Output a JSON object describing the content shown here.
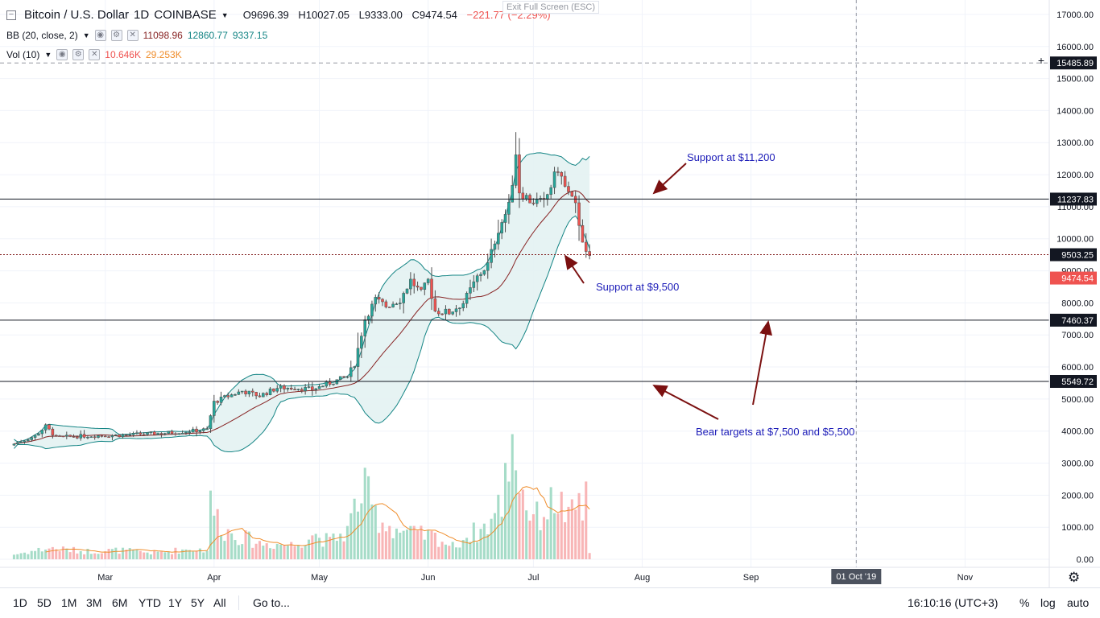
{
  "header": {
    "title": "Bitcoin / U.S. Dollar",
    "interval": "1D",
    "exchange": "COINBASE",
    "open": "O9696.39",
    "high": "H10027.05",
    "low": "L9333.00",
    "close": "C9474.54",
    "change": "−221.77 (−2.29%)"
  },
  "exit_fullscreen": "Exit Full Screen (ESC)",
  "indicators": {
    "bb": {
      "label": "BB (20, close, 2)",
      "basis": "11098.96",
      "upper": "12860.77",
      "lower": "9337.15"
    },
    "vol": {
      "label": "Vol (10)",
      "volume": "10.646K",
      "ma": "29.253K"
    }
  },
  "annotations": {
    "support_11200": "Support at $11,200",
    "support_9500": "Support at $9,500",
    "bear_targets": "Bear targets at $7,500 and $5,500"
  },
  "bottom_bar": {
    "ranges": [
      "1D",
      "5D",
      "1M",
      "3M",
      "6M",
      "YTD",
      "1Y",
      "5Y",
      "All"
    ],
    "goto": "Go to...",
    "time": "16:10:16 (UTC+3)",
    "percent": "%",
    "log": "log",
    "auto": "auto"
  },
  "colors": {
    "up": "#26a69a",
    "down": "#ef5350",
    "bb_band": "#138484",
    "bb_basis": "#872323",
    "bb_fill": "#e3f2f2",
    "vol_up": "#a6dcc8",
    "vol_down": "#f8b5b6",
    "vol_ma": "#ef8d2b",
    "annotation": "#1c1cb8",
    "arrow": "#7b1010"
  },
  "chart_data": {
    "type": "candlestick",
    "title": "Bitcoin / U.S. Dollar, 1D, COINBASE",
    "y_ticks": [
      0,
      1000,
      2000,
      3000,
      4000,
      5000,
      6000,
      7000,
      8000,
      9000,
      10000,
      11000,
      12000,
      13000,
      14000,
      15000,
      16000,
      17000
    ],
    "ylim": [
      -250,
      17450
    ],
    "x_labels": [
      {
        "day": 26,
        "label": "Mar"
      },
      {
        "day": 57,
        "label": "Apr"
      },
      {
        "day": 87,
        "label": "May"
      },
      {
        "day": 118,
        "label": "Jun"
      },
      {
        "day": 148,
        "label": "Jul"
      },
      {
        "day": 179,
        "label": "Aug"
      },
      {
        "day": 210,
        "label": "Sep"
      },
      {
        "day": 240,
        "label": "01 Oct '19"
      },
      {
        "day": 271,
        "label": "Nov"
      }
    ],
    "xlim": [
      -4,
      295
    ],
    "cursor_day": 240,
    "horizontal_lines": [
      {
        "value": 11237.83,
        "label": "11237.83",
        "style": "solid"
      },
      {
        "value": 7460.37,
        "label": "7460.37",
        "style": "solid"
      },
      {
        "value": 5549.72,
        "label": "5549.72",
        "style": "solid"
      },
      {
        "value": 15485.89,
        "label": "15485.89",
        "style": "dashed"
      },
      {
        "value": 9503.25,
        "label": "9503.25",
        "style": "dotted"
      }
    ],
    "last_price": {
      "value": 9474.54,
      "label": "9474.54"
    },
    "price_anchors": [
      [
        0,
        3600
      ],
      [
        6,
        3850
      ],
      [
        9,
        4150
      ],
      [
        12,
        3800
      ],
      [
        20,
        3850
      ],
      [
        30,
        3870
      ],
      [
        45,
        3950
      ],
      [
        55,
        4050
      ],
      [
        57,
        4900
      ],
      [
        60,
        5050
      ],
      [
        65,
        5250
      ],
      [
        70,
        5100
      ],
      [
        75,
        5350
      ],
      [
        80,
        5350
      ],
      [
        85,
        5300
      ],
      [
        90,
        5500
      ],
      [
        95,
        5700
      ],
      [
        97,
        6100
      ],
      [
        100,
        7500
      ],
      [
        103,
        8100
      ],
      [
        106,
        7900
      ],
      [
        110,
        8100
      ],
      [
        113,
        8700
      ],
      [
        116,
        8300
      ],
      [
        118,
        8700
      ],
      [
        120,
        7750
      ],
      [
        124,
        7700
      ],
      [
        128,
        8000
      ],
      [
        132,
        8800
      ],
      [
        135,
        9200
      ],
      [
        138,
        10300
      ],
      [
        141,
        11000
      ],
      [
        142,
        11800
      ],
      [
        143,
        12700
      ],
      [
        144,
        11500
      ],
      [
        147,
        11200
      ],
      [
        151,
        11100
      ],
      [
        155,
        12200
      ],
      [
        157,
        11600
      ],
      [
        159,
        11200
      ],
      [
        160,
        11000
      ],
      [
        162,
        10000
      ],
      [
        163,
        9500
      ],
      [
        164,
        9474
      ]
    ],
    "volume_anchors": [
      [
        0,
        150
      ],
      [
        10,
        350
      ],
      [
        20,
        250
      ],
      [
        30,
        280
      ],
      [
        40,
        200
      ],
      [
        50,
        320
      ],
      [
        55,
        300
      ],
      [
        56,
        1700
      ],
      [
        60,
        900
      ],
      [
        65,
        700
      ],
      [
        70,
        500
      ],
      [
        80,
        450
      ],
      [
        85,
        800
      ],
      [
        90,
        550
      ],
      [
        95,
        900
      ],
      [
        98,
        1900
      ],
      [
        100,
        2100
      ],
      [
        103,
        1400
      ],
      [
        106,
        1100
      ],
      [
        110,
        900
      ],
      [
        113,
        800
      ],
      [
        120,
        700
      ],
      [
        125,
        400
      ],
      [
        130,
        800
      ],
      [
        133,
        900
      ],
      [
        136,
        1200
      ],
      [
        139,
        1800
      ],
      [
        142,
        4000
      ],
      [
        144,
        2500
      ],
      [
        146,
        1700
      ],
      [
        149,
        1300
      ],
      [
        152,
        1600
      ],
      [
        155,
        1900
      ],
      [
        158,
        1200
      ],
      [
        160,
        1600
      ],
      [
        161,
        1900
      ],
      [
        162,
        1500
      ],
      [
        163,
        1800
      ],
      [
        164,
        250
      ]
    ],
    "vol_scale_note": "volume plotted on same axis scale in K units (max about 4100)"
  }
}
